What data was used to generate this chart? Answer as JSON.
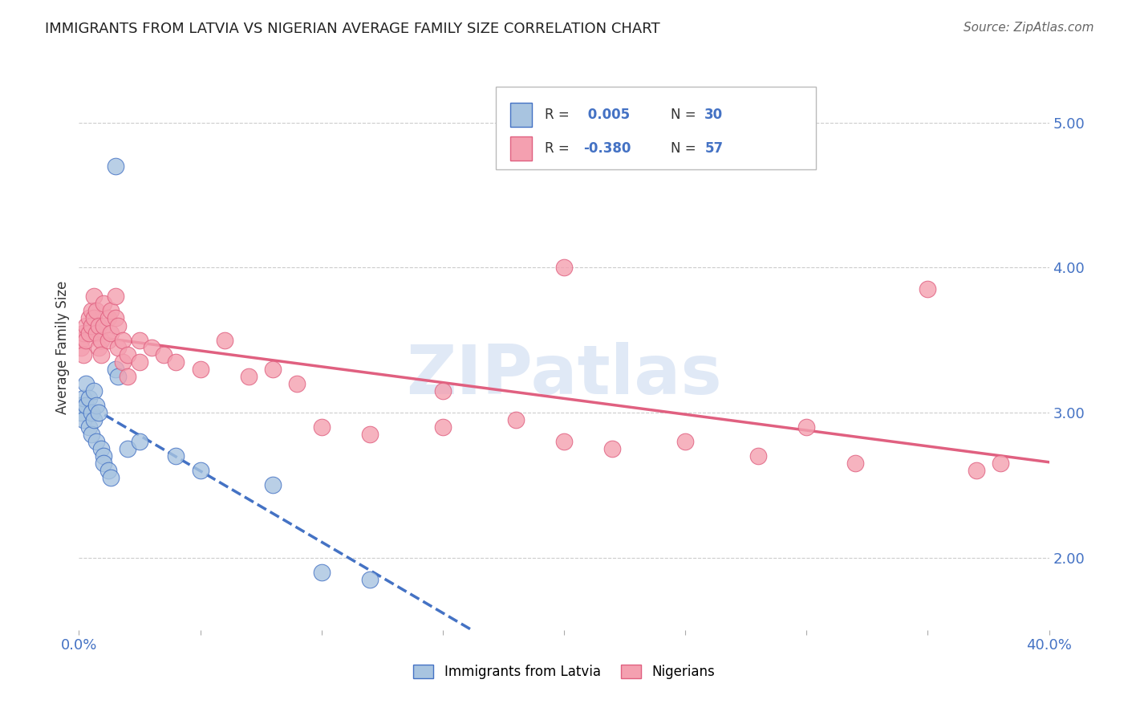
{
  "title": "IMMIGRANTS FROM LATVIA VS NIGERIAN AVERAGE FAMILY SIZE CORRELATION CHART",
  "source": "Source: ZipAtlas.com",
  "ylabel": "Average Family Size",
  "yticks": [
    2.0,
    3.0,
    4.0,
    5.0
  ],
  "xlim": [
    0.0,
    0.4
  ],
  "ylim": [
    1.5,
    5.4
  ],
  "legend_r_latvia": "R = ",
  "legend_rv_latvia": " 0.005",
  "legend_n_latvia": "N = ",
  "legend_nv_latvia": "30",
  "legend_r_nigerian": "R = ",
  "legend_rv_nigerian": "-0.380",
  "legend_n_nigerian": "N = ",
  "legend_nv_nigerian": "57",
  "legend_label_latvia": "Immigrants from Latvia",
  "legend_label_nigerian": "Nigerians",
  "color_latvia": "#a8c4e0",
  "color_nigerian": "#f4a0b0",
  "color_blue_text": "#4472C4",
  "color_pink_text": "#E06080",
  "trendline_latvia_color": "#4472C4",
  "trendline_nigerian_color": "#E06080",
  "watermark": "ZIPatlas",
  "latvia_points": [
    [
      0.001,
      3.05
    ],
    [
      0.001,
      3.0
    ],
    [
      0.002,
      3.1
    ],
    [
      0.002,
      2.95
    ],
    [
      0.003,
      3.2
    ],
    [
      0.003,
      3.05
    ],
    [
      0.004,
      3.1
    ],
    [
      0.004,
      2.9
    ],
    [
      0.005,
      3.0
    ],
    [
      0.005,
      2.85
    ],
    [
      0.006,
      3.15
    ],
    [
      0.006,
      2.95
    ],
    [
      0.007,
      3.05
    ],
    [
      0.007,
      2.8
    ],
    [
      0.008,
      3.0
    ],
    [
      0.009,
      2.75
    ],
    [
      0.01,
      2.7
    ],
    [
      0.01,
      2.65
    ],
    [
      0.012,
      2.6
    ],
    [
      0.013,
      2.55
    ],
    [
      0.015,
      4.7
    ],
    [
      0.015,
      3.3
    ],
    [
      0.016,
      3.25
    ],
    [
      0.02,
      2.75
    ],
    [
      0.025,
      2.8
    ],
    [
      0.04,
      2.7
    ],
    [
      0.05,
      2.6
    ],
    [
      0.08,
      2.5
    ],
    [
      0.1,
      1.9
    ],
    [
      0.12,
      1.85
    ]
  ],
  "nigerian_points": [
    [
      0.001,
      3.5
    ],
    [
      0.001,
      3.45
    ],
    [
      0.002,
      3.55
    ],
    [
      0.002,
      3.4
    ],
    [
      0.003,
      3.6
    ],
    [
      0.003,
      3.5
    ],
    [
      0.004,
      3.65
    ],
    [
      0.004,
      3.55
    ],
    [
      0.005,
      3.7
    ],
    [
      0.005,
      3.6
    ],
    [
      0.006,
      3.8
    ],
    [
      0.006,
      3.65
    ],
    [
      0.007,
      3.7
    ],
    [
      0.007,
      3.55
    ],
    [
      0.008,
      3.6
    ],
    [
      0.008,
      3.45
    ],
    [
      0.009,
      3.5
    ],
    [
      0.009,
      3.4
    ],
    [
      0.01,
      3.75
    ],
    [
      0.01,
      3.6
    ],
    [
      0.012,
      3.65
    ],
    [
      0.012,
      3.5
    ],
    [
      0.013,
      3.7
    ],
    [
      0.013,
      3.55
    ],
    [
      0.015,
      3.8
    ],
    [
      0.015,
      3.65
    ],
    [
      0.016,
      3.6
    ],
    [
      0.016,
      3.45
    ],
    [
      0.018,
      3.5
    ],
    [
      0.018,
      3.35
    ],
    [
      0.02,
      3.4
    ],
    [
      0.02,
      3.25
    ],
    [
      0.025,
      3.5
    ],
    [
      0.025,
      3.35
    ],
    [
      0.03,
      3.45
    ],
    [
      0.035,
      3.4
    ],
    [
      0.04,
      3.35
    ],
    [
      0.05,
      3.3
    ],
    [
      0.06,
      3.5
    ],
    [
      0.07,
      3.25
    ],
    [
      0.08,
      3.3
    ],
    [
      0.09,
      3.2
    ],
    [
      0.1,
      2.9
    ],
    [
      0.12,
      2.85
    ],
    [
      0.15,
      3.15
    ],
    [
      0.15,
      2.9
    ],
    [
      0.18,
      2.95
    ],
    [
      0.2,
      2.8
    ],
    [
      0.22,
      2.75
    ],
    [
      0.25,
      2.8
    ],
    [
      0.28,
      2.7
    ],
    [
      0.3,
      2.9
    ],
    [
      0.32,
      2.65
    ],
    [
      0.35,
      3.85
    ],
    [
      0.37,
      2.6
    ],
    [
      0.2,
      4.0
    ],
    [
      0.38,
      2.65
    ]
  ]
}
